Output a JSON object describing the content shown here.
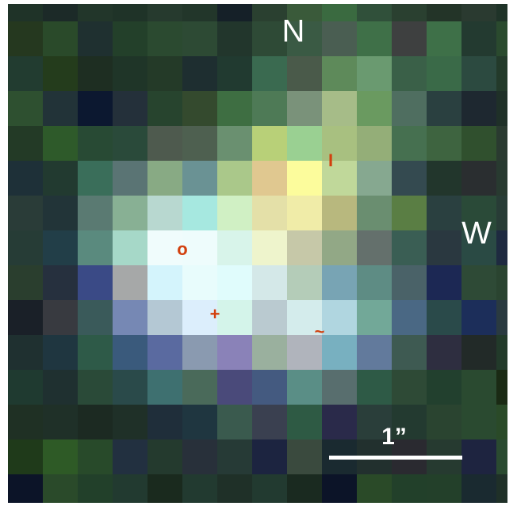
{
  "labels": {
    "north": "N",
    "west": "W",
    "scale": "1”"
  },
  "markers": [
    "o",
    "I",
    "+",
    "~"
  ]
}
